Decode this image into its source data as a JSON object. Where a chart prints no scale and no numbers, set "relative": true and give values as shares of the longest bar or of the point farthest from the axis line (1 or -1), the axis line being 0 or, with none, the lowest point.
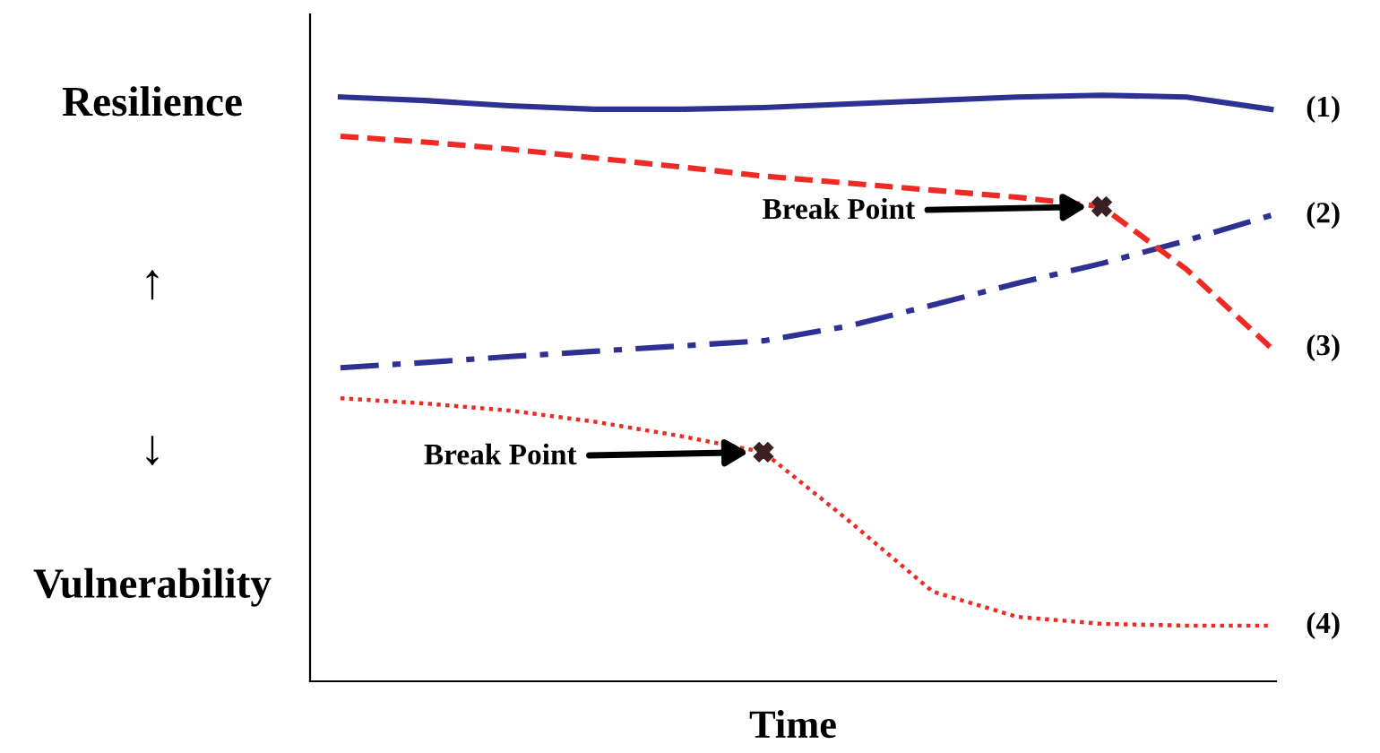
{
  "chart_data": {
    "type": "line",
    "relative": true,
    "xlabel": "Time",
    "categories": [
      null,
      null,
      null,
      null,
      null,
      null,
      null,
      null,
      null,
      null,
      null,
      null
    ],
    "series": [
      {
        "name": "(1)",
        "color": "#2e3192",
        "line_style": "solid",
        "values": [
          0.997,
          0.991,
          0.982,
          0.976,
          0.976,
          0.979,
          0.985,
          0.991,
          0.997,
          1,
          0.997,
          0.976
        ]
      },
      {
        "name": "(2)",
        "color": "#2e3192",
        "line_style": "dashdot",
        "values": [
          0.535,
          0.544,
          0.554,
          0.563,
          0.572,
          0.581,
          0.606,
          0.642,
          0.679,
          0.713,
          0.752,
          0.795
        ]
      },
      {
        "name": "(3)",
        "color": "#ee2a24",
        "line_style": "dashed",
        "values": [
          0.93,
          0.92,
          0.908,
          0.893,
          0.878,
          0.862,
          0.85,
          0.838,
          0.826,
          0.81,
          0.703,
          0.569
        ]
      },
      {
        "name": "(4)",
        "color": "#ee2a24",
        "line_style": "dotted",
        "values": [
          0.483,
          0.474,
          0.462,
          0.443,
          0.419,
          0.391,
          0.275,
          0.153,
          0.11,
          0.098,
          0.095,
          0.095
        ]
      }
    ],
    "annotations": [
      "Resilience",
      "↑",
      "↓",
      "Vulnerability",
      "Break Point",
      "Break Point"
    ],
    "grid": false,
    "legend": false
  }
}
